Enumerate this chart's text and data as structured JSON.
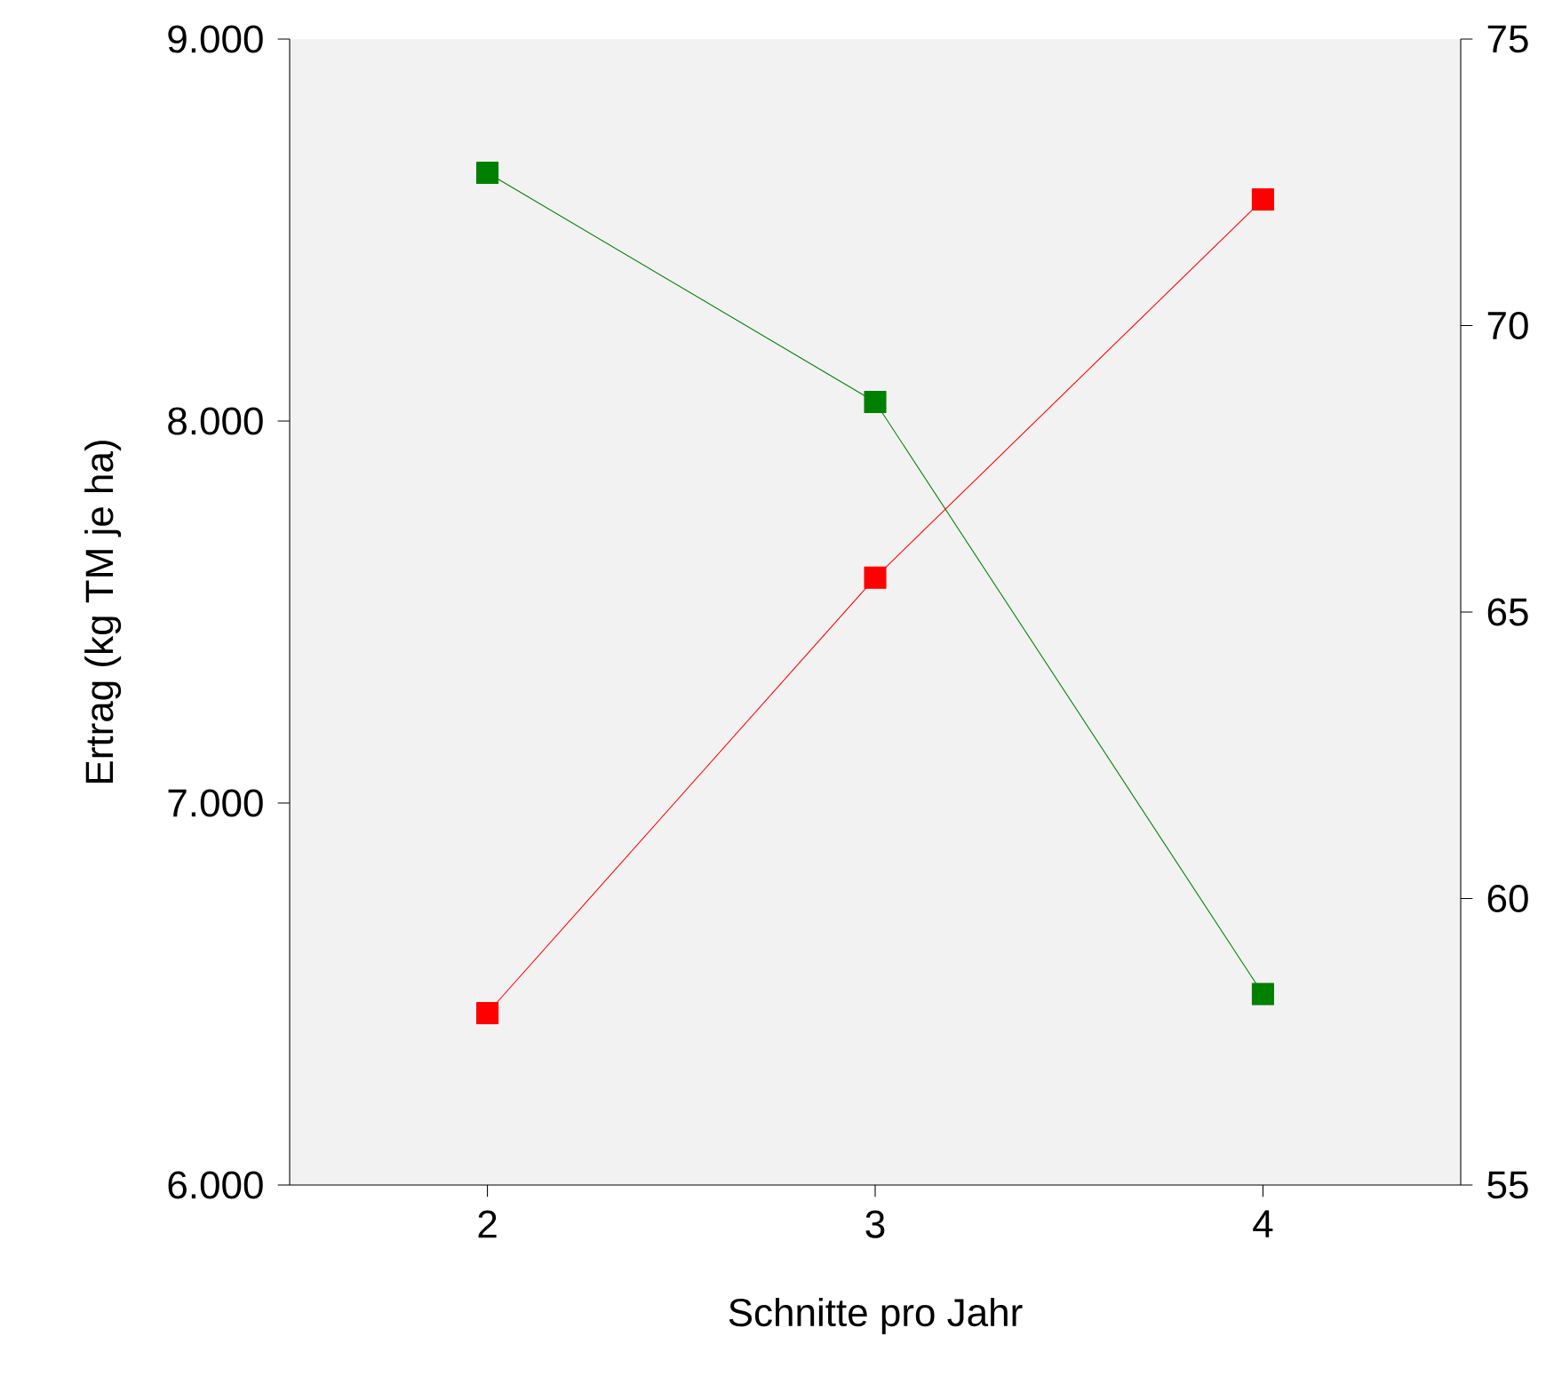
{
  "chart_data": {
    "type": "line",
    "xlabel": "Schnitte pro Jahr",
    "ylabel": "Ertrag (kg TM je ha)",
    "x": [
      2,
      3,
      4
    ],
    "xlim": [
      1.49,
      4.51
    ],
    "xticks": [
      2,
      3,
      4
    ],
    "ylim": [
      6000,
      9000
    ],
    "yticks": [
      {
        "value": 6000,
        "label": "6.000"
      },
      {
        "value": 7000,
        "label": "7.000"
      },
      {
        "value": 8000,
        "label": "8.000"
      },
      {
        "value": 9000,
        "label": "9.000"
      }
    ],
    "y2lim": [
      55,
      75
    ],
    "y2ticks": [
      55,
      60,
      65,
      70,
      75
    ],
    "marker": "square",
    "grid": false,
    "series": [
      {
        "color": "#008000",
        "values": [
          8650,
          8050,
          6500
        ]
      },
      {
        "color": "#ff0000",
        "axis": "y2",
        "values": [
          58,
          65.6,
          72.2
        ]
      }
    ]
  }
}
